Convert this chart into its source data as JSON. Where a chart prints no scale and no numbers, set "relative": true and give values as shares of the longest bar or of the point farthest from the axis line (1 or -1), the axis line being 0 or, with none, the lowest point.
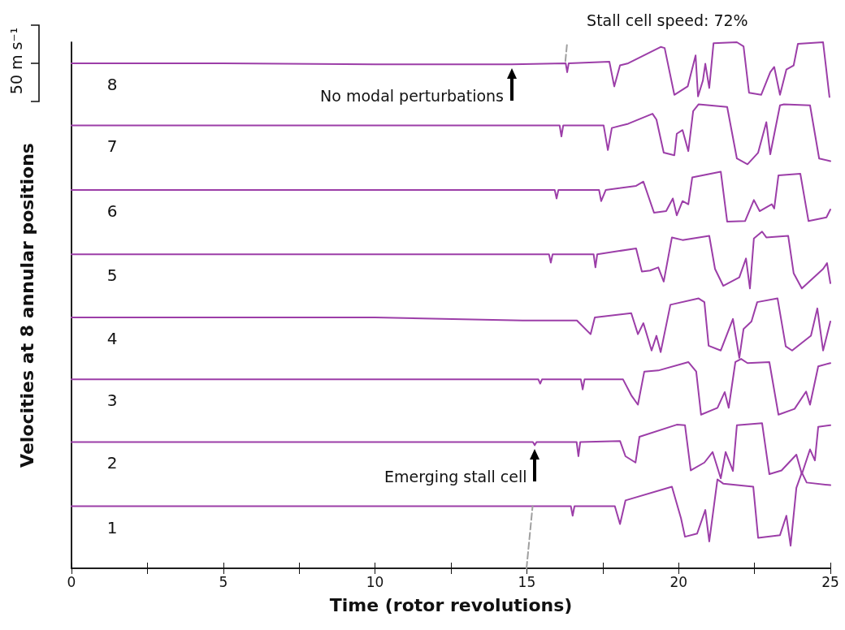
{
  "chart_data": {
    "type": "line",
    "relative": true,
    "xlabel": "Time (rotor revolutions)",
    "ylabel": "Velocities at 8 annular positions",
    "xlim": [
      0,
      25
    ],
    "xticks": [
      0,
      {
        "value": 2.5,
        "label": null
      },
      5,
      {
        "value": 7.5,
        "label": null
      },
      10,
      {
        "value": 12.5,
        "label": null
      },
      15,
      {
        "value": 17.5,
        "label": null
      },
      20,
      {
        "value": 22.5,
        "label": null
      },
      25
    ],
    "marker": "none",
    "line_style": "solid",
    "annotations": [
      {
        "text": "Stall cell speed: 72%",
        "x": 16.33,
        "y": 1
      },
      {
        "text": "No modal perturbations",
        "x": 14.51,
        "y": 0.958
      },
      {
        "text": "Emerging stall cell",
        "x": 15.26,
        "y": 0.234
      },
      "50 m s⁻¹"
    ],
    "series": [
      {
        "name": "1",
        "color": "#9c3ea8",
        "x": [
          0,
          5,
          10,
          16.45,
          16.51,
          16.57,
          17.9,
          18.07,
          18.25,
          19.78,
          20.08,
          20.21,
          20.61,
          20.88,
          21.01,
          21.28,
          21.47,
          22.46,
          22.62,
          23.34,
          23.55,
          23.69,
          23.88,
          24.06,
          24.22,
          25
        ],
        "values": [
          0.118,
          0.118,
          0.118,
          0.118,
          0.1,
          0.118,
          0.118,
          0.084,
          0.129,
          0.155,
          0.095,
          0.06,
          0.066,
          0.111,
          0.051,
          0.169,
          0.161,
          0.155,
          0.058,
          0.063,
          0.1,
          0.043,
          0.153,
          0.182,
          0.163,
          0.158
        ]
      },
      {
        "name": "2",
        "color": "#9c3ea8",
        "x": [
          0,
          5,
          10,
          15.2,
          15.26,
          15.32,
          16.64,
          16.7,
          16.76,
          18.07,
          18.25,
          18.58,
          18.71,
          19.94,
          20.21,
          20.4,
          20.85,
          21.12,
          21.39,
          21.55,
          21.79,
          21.92,
          22.75,
          22.99,
          23.39,
          23.88,
          24.06,
          24.33,
          24.49,
          24.6,
          25
        ],
        "values": [
          0.24,
          0.24,
          0.24,
          0.24,
          0.234,
          0.24,
          0.24,
          0.213,
          0.24,
          0.242,
          0.213,
          0.201,
          0.25,
          0.273,
          0.272,
          0.186,
          0.201,
          0.221,
          0.171,
          0.221,
          0.185,
          0.272,
          0.276,
          0.179,
          0.186,
          0.216,
          0.179,
          0.226,
          0.205,
          0.269,
          0.272
        ]
      },
      {
        "name": "3",
        "color": "#9c3ea8",
        "x": [
          0,
          5,
          10,
          15.38,
          15.44,
          15.5,
          16.78,
          16.84,
          16.9,
          18.17,
          18.44,
          18.66,
          18.87,
          19.33,
          20.32,
          20.58,
          20.74,
          21.28,
          21.52,
          21.65,
          21.87,
          22.06,
          22.27,
          22.99,
          23.29,
          23.82,
          24.2,
          24.33,
          24.6,
          25
        ],
        "values": [
          0.359,
          0.359,
          0.359,
          0.359,
          0.351,
          0.359,
          0.359,
          0.34,
          0.359,
          0.359,
          0.329,
          0.311,
          0.374,
          0.376,
          0.392,
          0.374,
          0.292,
          0.305,
          0.335,
          0.305,
          0.392,
          0.398,
          0.39,
          0.392,
          0.292,
          0.303,
          0.336,
          0.311,
          0.384,
          0.39
        ]
      },
      {
        "name": "4",
        "color": "#9c3ea8",
        "x": [
          0,
          5,
          10,
          14.86,
          15.63,
          16.65,
          17.1,
          17.24,
          18.44,
          18.66,
          18.84,
          19.11,
          19.27,
          19.41,
          19.73,
          20.66,
          20.85,
          20.99,
          21.39,
          21.79,
          22.0,
          22.14,
          22.4,
          22.59,
          23.26,
          23.53,
          23.74,
          24.36,
          24.57,
          24.76,
          25
        ],
        "values": [
          0.477,
          0.477,
          0.477,
          0.471,
          0.471,
          0.471,
          0.445,
          0.477,
          0.485,
          0.445,
          0.466,
          0.414,
          0.442,
          0.411,
          0.501,
          0.513,
          0.506,
          0.423,
          0.414,
          0.474,
          0.4,
          0.455,
          0.469,
          0.506,
          0.513,
          0.422,
          0.414,
          0.442,
          0.494,
          0.414,
          0.469
        ]
      },
      {
        "name": "5",
        "color": "#9c3ea8",
        "x": [
          0,
          5,
          10,
          15.73,
          15.79,
          15.85,
          17.2,
          17.26,
          17.32,
          18.6,
          18.79,
          19.06,
          19.33,
          19.51,
          19.78,
          20.13,
          21.01,
          21.2,
          21.47,
          22.0,
          22.22,
          22.35,
          22.48,
          22.75,
          22.89,
          23.61,
          23.79,
          24.06,
          24.76,
          24.89,
          25
        ],
        "values": [
          0.597,
          0.597,
          0.597,
          0.597,
          0.581,
          0.597,
          0.597,
          0.572,
          0.597,
          0.608,
          0.564,
          0.566,
          0.572,
          0.545,
          0.629,
          0.624,
          0.632,
          0.569,
          0.537,
          0.553,
          0.589,
          0.532,
          0.627,
          0.64,
          0.629,
          0.632,
          0.561,
          0.532,
          0.569,
          0.58,
          0.542
        ]
      },
      {
        "name": "6",
        "color": "#9c3ea8",
        "x": [
          0,
          5,
          10,
          15.92,
          15.98,
          16.04,
          17.38,
          17.45,
          17.6,
          18.6,
          18.84,
          19.19,
          19.59,
          19.81,
          19.94,
          20.13,
          20.32,
          20.45,
          21.39,
          21.6,
          22.19,
          22.48,
          22.67,
          23.07,
          23.15,
          23.29,
          24.01,
          24.28,
          24.87,
          25
        ],
        "values": [
          0.719,
          0.719,
          0.719,
          0.719,
          0.703,
          0.719,
          0.719,
          0.698,
          0.719,
          0.727,
          0.735,
          0.676,
          0.679,
          0.703,
          0.671,
          0.698,
          0.692,
          0.743,
          0.754,
          0.659,
          0.66,
          0.7,
          0.679,
          0.692,
          0.684,
          0.747,
          0.75,
          0.66,
          0.667,
          0.682
        ]
      },
      {
        "name": "7",
        "color": "#9c3ea8",
        "x": [
          0,
          5,
          10,
          16.08,
          16.14,
          16.2,
          17.53,
          17.67,
          17.8,
          18.34,
          19.14,
          19.27,
          19.51,
          19.86,
          19.94,
          20.13,
          20.32,
          20.48,
          20.66,
          21.6,
          21.92,
          22.27,
          22.62,
          22.89,
          23.02,
          23.34,
          23.47,
          24.33,
          24.63,
          25
        ],
        "values": [
          0.842,
          0.842,
          0.842,
          0.842,
          0.821,
          0.842,
          0.842,
          0.795,
          0.837,
          0.845,
          0.864,
          0.853,
          0.79,
          0.785,
          0.826,
          0.833,
          0.793,
          0.869,
          0.882,
          0.877,
          0.779,
          0.768,
          0.79,
          0.848,
          0.787,
          0.88,
          0.882,
          0.88,
          0.779,
          0.774
        ]
      },
      {
        "name": "8",
        "color": "#9c3ea8",
        "x": [
          0,
          5,
          10,
          14.5,
          16.28,
          16.33,
          16.38,
          17.72,
          17.88,
          18.07,
          18.34,
          19.41,
          19.54,
          19.86,
          20.3,
          20.56,
          20.64,
          20.8,
          20.88,
          21.01,
          21.15,
          21.92,
          22.14,
          22.32,
          22.72,
          23.02,
          23.15,
          23.34,
          23.55,
          23.79,
          23.93,
          24.76,
          24.97
        ],
        "values": [
          0.96,
          0.96,
          0.958,
          0.958,
          0.96,
          0.943,
          0.96,
          0.963,
          0.916,
          0.956,
          0.96,
          0.991,
          0.989,
          0.9,
          0.916,
          0.975,
          0.897,
          0.927,
          0.959,
          0.913,
          0.998,
          1.0,
          0.992,
          0.904,
          0.9,
          0.943,
          0.953,
          0.9,
          0.948,
          0.956,
          0.997,
          1.0,
          0.896
        ]
      },
      {
        "color": "#a0a0a0",
        "line_style": "dashed",
        "x": [
          14.99,
          15.19,
          15.7,
          16.27,
          16.33
        ],
        "values": [
          0,
          0.118,
          null,
          0.964,
          1
        ]
      }
    ]
  }
}
